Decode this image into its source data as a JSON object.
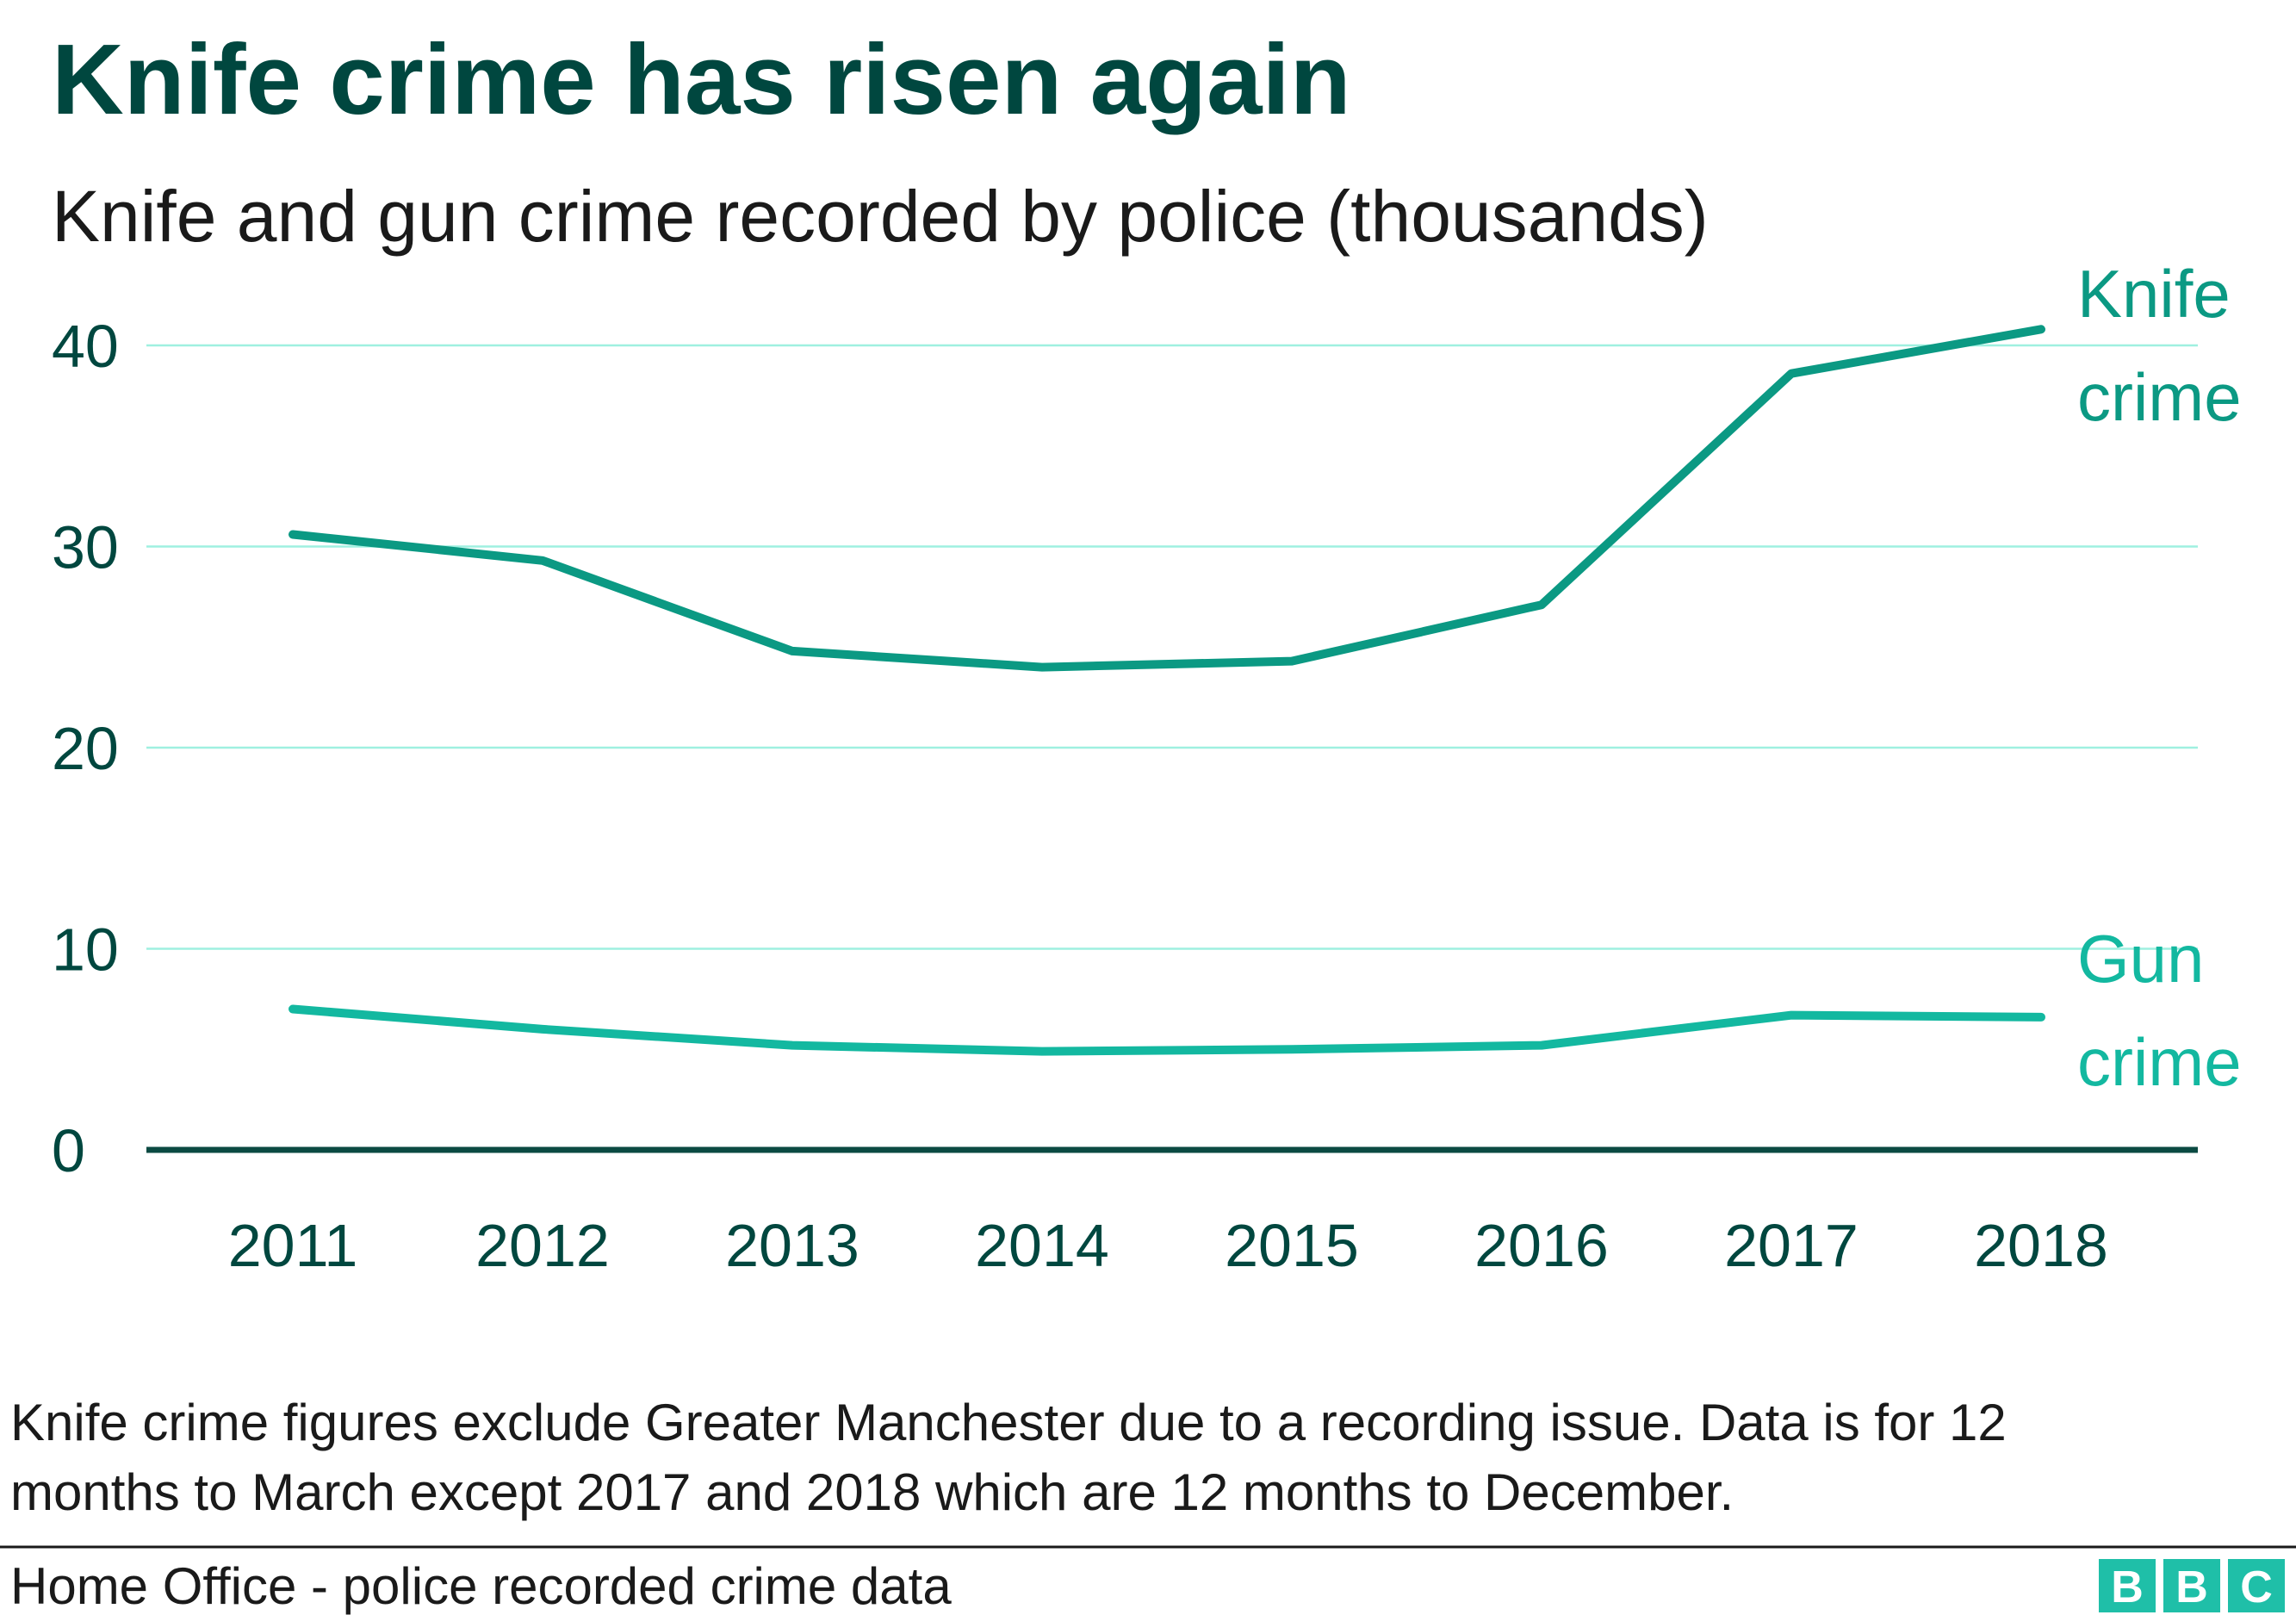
{
  "colors": {
    "title": "#00473f",
    "axis_text": "#00473f",
    "gridline": "#9ff0e0",
    "baseline": "#0b4a42",
    "knife_line": "#0b9983",
    "gun_line": "#13b8a0",
    "logo_bg": "#1fbfa8",
    "divider": "#1a1a1a"
  },
  "chart_data": {
    "type": "line",
    "title": "Knife crime has risen again",
    "subtitle": "Knife and gun crime recorded by police (thousands)",
    "x": [
      "2011",
      "2012",
      "2013",
      "2014",
      "2015",
      "2016",
      "2017",
      "2018"
    ],
    "ylim": [
      0,
      40
    ],
    "yticks": [
      "0",
      "10",
      "20",
      "30",
      "40"
    ],
    "grid": true,
    "series": [
      {
        "name": "Knife crime",
        "label_lines": [
          "Knife",
          "crime"
        ],
        "values": [
          30.6,
          29.3,
          24.8,
          24.0,
          24.3,
          27.1,
          38.6,
          40.8
        ]
      },
      {
        "name": "Gun crime",
        "label_lines": [
          "Gun",
          "crime"
        ],
        "values": [
          7.0,
          6.0,
          5.2,
          4.9,
          5.0,
          5.2,
          6.7,
          6.6
        ]
      }
    ]
  },
  "footnote": {
    "line1": "Knife crime figures exclude Greater Manchester due to a recording issue. Data is for 12",
    "line2": "months to March except 2017 and 2018 which are 12 months to December."
  },
  "source": "Home Office - police recorded crime data",
  "logo": {
    "letters": [
      "B",
      "B",
      "C"
    ]
  }
}
